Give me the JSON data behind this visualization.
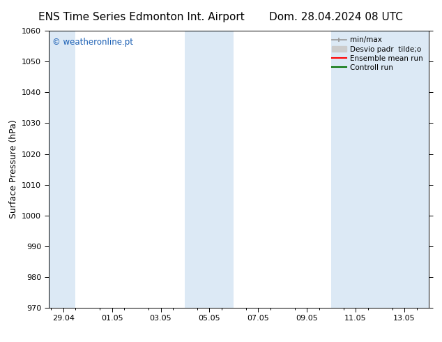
{
  "title_left": "ENS Time Series Edmonton Int. Airport",
  "title_right": "Dom. 28.04.2024 08 UTC",
  "ylabel": "Surface Pressure (hPa)",
  "ylim": [
    970,
    1060
  ],
  "yticks": [
    970,
    980,
    990,
    1000,
    1010,
    1020,
    1030,
    1040,
    1050,
    1060
  ],
  "xtick_labels": [
    "29.04",
    "01.05",
    "03.05",
    "05.05",
    "07.05",
    "09.05",
    "11.05",
    "13.05"
  ],
  "xtick_positions": [
    0.5,
    2.5,
    4.5,
    6.5,
    8.5,
    10.5,
    12.5,
    14.5
  ],
  "xlim": [
    -0.1,
    15.5
  ],
  "shaded_bands": [
    {
      "xmin": -0.1,
      "xmax": 1.0
    },
    {
      "xmin": 5.5,
      "xmax": 7.5
    },
    {
      "xmin": 11.5,
      "xmax": 15.5
    }
  ],
  "shade_color": "#dce9f5",
  "background_color": "#ffffff",
  "watermark_text": "© weatheronline.pt",
  "watermark_color": "#1a5fb4",
  "legend_minmax_color": "#999999",
  "legend_std_color": "#cccccc",
  "legend_ens_color": "#ff0000",
  "legend_ctrl_color": "#007000",
  "title_fontsize": 11,
  "tick_fontsize": 8,
  "ylabel_fontsize": 9,
  "legend_fontsize": 7.5
}
